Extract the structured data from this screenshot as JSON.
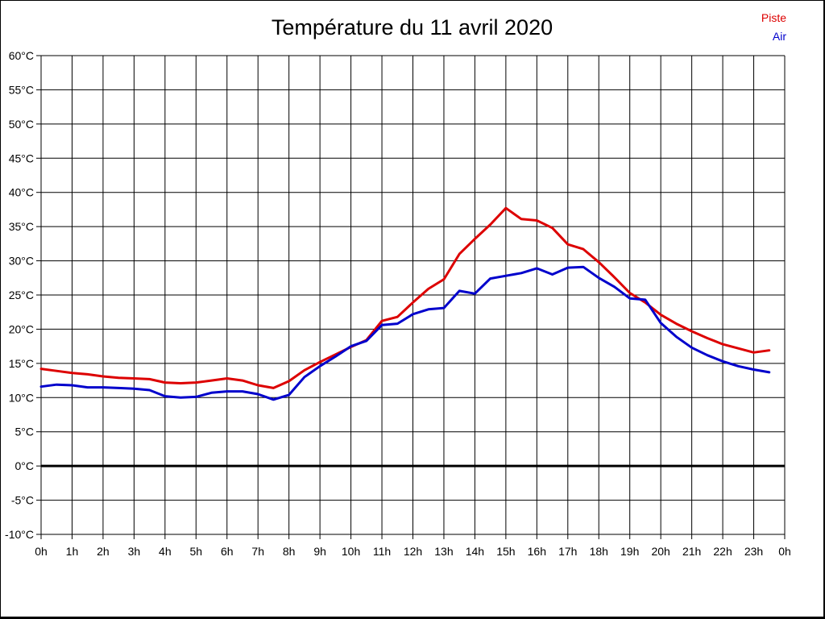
{
  "title": "Température du 11 avril 2020",
  "legend": [
    {
      "label": "Piste",
      "color": "#dd0000"
    },
    {
      "label": "Air",
      "color": "#0000cc"
    }
  ],
  "colors": {
    "piste_line": "#dd0000",
    "air_line": "#0000cc",
    "grid": "#000000",
    "background": "#ffffff",
    "text": "#000000"
  },
  "chart_data": {
    "type": "line",
    "title": "Température du 11 avril 2020",
    "xlabel": "",
    "ylabel": "",
    "xlim": [
      0,
      24
    ],
    "ylim": [
      -10,
      60
    ],
    "y_step": 5,
    "grid": true,
    "zero_line_bold": true,
    "legend_position": "top-right",
    "x_tick_labels": [
      "0h",
      "1h",
      "2h",
      "3h",
      "4h",
      "5h",
      "6h",
      "7h",
      "8h",
      "9h",
      "10h",
      "11h",
      "12h",
      "13h",
      "14h",
      "15h",
      "16h",
      "17h",
      "18h",
      "19h",
      "20h",
      "21h",
      "22h",
      "23h",
      "0h"
    ],
    "y_tick_labels": [
      "60°C",
      "55°C",
      "50°C",
      "45°C",
      "40°C",
      "35°C",
      "30°C",
      "25°C",
      "20°C",
      "15°C",
      "10°C",
      "5°C",
      "0°C",
      "-5°C",
      "-10°C"
    ],
    "x": [
      0,
      0.5,
      1,
      1.5,
      2,
      2.5,
      3,
      3.5,
      4,
      4.5,
      5,
      5.5,
      6,
      6.5,
      7,
      7.5,
      8,
      8.5,
      9,
      9.5,
      10,
      10.5,
      11,
      11.5,
      12,
      12.5,
      13,
      13.5,
      14,
      14.5,
      15,
      15.5,
      16,
      16.5,
      17,
      17.5,
      18,
      18.5,
      19,
      19.5,
      20,
      20.5,
      21,
      21.5,
      22,
      22.5,
      23,
      23.5
    ],
    "series": [
      {
        "name": "Piste",
        "color": "#dd0000",
        "values": [
          14.2,
          13.9,
          13.6,
          13.4,
          13.1,
          12.9,
          12.8,
          12.7,
          12.2,
          12.1,
          12.2,
          12.5,
          12.8,
          12.5,
          11.8,
          11.4,
          12.4,
          14.0,
          15.2,
          16.3,
          17.4,
          18.4,
          21.2,
          21.8,
          23.9,
          25.9,
          27.3,
          31.0,
          33.2,
          35.3,
          37.7,
          36.1,
          35.9,
          34.8,
          32.4,
          31.7,
          29.8,
          27.6,
          25.3,
          23.9,
          22.1,
          20.8,
          19.7,
          18.7,
          17.8,
          17.2,
          16.6,
          16.9
        ]
      },
      {
        "name": "Air",
        "color": "#0000cc",
        "values": [
          11.6,
          11.9,
          11.8,
          11.5,
          11.5,
          11.4,
          11.3,
          11.1,
          10.2,
          10.0,
          10.1,
          10.7,
          10.9,
          10.9,
          10.5,
          9.7,
          10.4,
          13.0,
          14.6,
          16.0,
          17.5,
          18.3,
          20.6,
          20.8,
          22.2,
          22.9,
          23.1,
          25.6,
          25.2,
          27.4,
          27.8,
          28.2,
          28.9,
          28.0,
          29.0,
          29.1,
          27.5,
          26.2,
          24.5,
          24.3,
          20.9,
          18.9,
          17.3,
          16.2,
          15.3,
          14.6,
          14.1,
          13.7
        ]
      }
    ]
  }
}
